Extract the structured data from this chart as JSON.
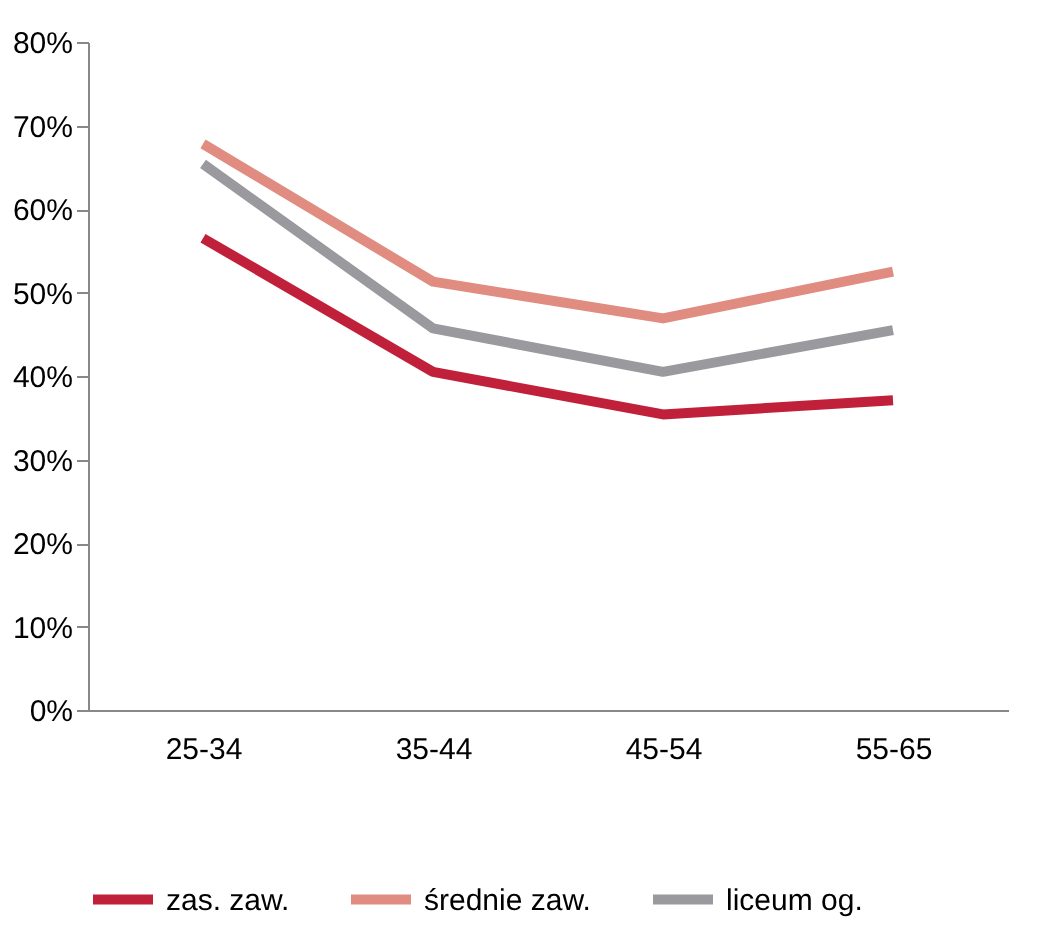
{
  "chart_data": {
    "type": "line",
    "categories": [
      "25-34",
      "35-44",
      "45-54",
      "55-65"
    ],
    "series": [
      {
        "name": "zas. zaw.",
        "color": "#c0203a",
        "values": [
          56.5,
          40.5,
          35.4,
          37.1
        ]
      },
      {
        "name": "średnie zaw.",
        "color": "#e08c80",
        "values": [
          67.8,
          51.3,
          46.9,
          52.5
        ]
      },
      {
        "name": "liceum og.",
        "color": "#9a9a9e",
        "values": [
          65.4,
          45.7,
          40.5,
          45.5
        ]
      }
    ],
    "ylim": [
      0,
      80
    ],
    "yticks": [
      {
        "value": 0,
        "label": "0%"
      },
      {
        "value": 10,
        "label": "10%"
      },
      {
        "value": 20,
        "label": "20%"
      },
      {
        "value": 30,
        "label": "30%"
      },
      {
        "value": 40,
        "label": "40%"
      },
      {
        "value": 50,
        "label": "50%"
      },
      {
        "value": 60,
        "label": "60%"
      },
      {
        "value": 70,
        "label": "70%"
      },
      {
        "value": 80,
        "label": "80%"
      }
    ],
    "grid": false,
    "legend": "bottom",
    "marker": "none",
    "line_style": "solid"
  }
}
